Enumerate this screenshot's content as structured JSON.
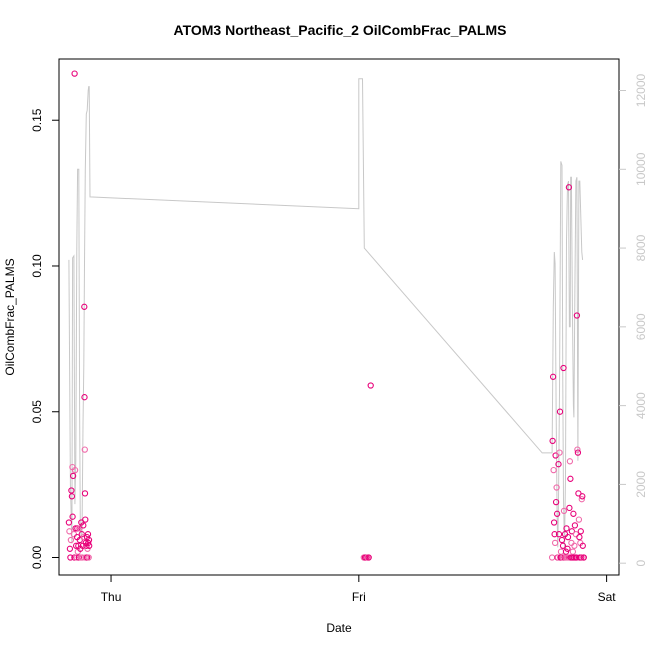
{
  "chart_data": {
    "type": "scatter",
    "title": "ATOM3 Northeast_Pacific_2 OilCombFrac_PALMS",
    "xlabel": "Date",
    "ylabel": "OilCombFrac_PALMS",
    "x_unit": "days since Thu 00:00",
    "xlim": [
      -0.21,
      2.05
    ],
    "ylim": [
      -0.006,
      0.171
    ],
    "y_ticks": [
      "0.00",
      "0.05",
      "0.10",
      "0.15"
    ],
    "y_tick_values": [
      0.0,
      0.05,
      0.1,
      0.15
    ],
    "x_ticks": [
      "Thu",
      "Fri",
      "Sat"
    ],
    "x_tick_values": [
      0,
      1,
      2
    ],
    "y2lim": [
      -300,
      12800
    ],
    "y2_ticks": [
      "0",
      "2000",
      "4000",
      "6000",
      "8000",
      "10000",
      "12000"
    ],
    "y2_tick_values": [
      0,
      2000,
      4000,
      6000,
      8000,
      10000,
      12000
    ],
    "colors": {
      "points_dark": "#e8007a",
      "points_light": "#f06aaa",
      "altitude_line": "#c8c8c8",
      "axis": "#000000"
    },
    "series": [
      {
        "kind": "scatter",
        "values": [
          [
            -0.17,
            0.012
          ],
          [
            -0.168,
            0.009
          ],
          [
            -0.166,
            0.003
          ],
          [
            -0.164,
            0.0
          ],
          [
            -0.162,
            0.006
          ],
          [
            -0.16,
            0.023
          ],
          [
            -0.158,
            0.021
          ],
          [
            -0.156,
            0.031
          ],
          [
            -0.155,
            0.014
          ],
          [
            -0.153,
            0.028
          ],
          [
            -0.15,
            0.008
          ],
          [
            -0.148,
            0.0
          ],
          [
            -0.147,
            0.166
          ],
          [
            -0.145,
            0.03
          ],
          [
            -0.143,
            0.01
          ],
          [
            -0.141,
            0.004
          ],
          [
            -0.139,
            0.0
          ],
          [
            -0.137,
            0.007
          ],
          [
            -0.136,
            0.01
          ],
          [
            -0.134,
            0.002
          ],
          [
            -0.132,
            0.004
          ],
          [
            -0.13,
            0.0
          ],
          [
            -0.128,
            0.01
          ],
          [
            -0.126,
            0.006
          ],
          [
            -0.124,
            0.003
          ],
          [
            -0.122,
            0.0
          ],
          [
            -0.12,
            0.012
          ],
          [
            -0.118,
            0.008
          ],
          [
            -0.116,
            0.0
          ],
          [
            -0.114,
            0.004
          ],
          [
            -0.112,
            0.011
          ],
          [
            -0.11,
            0.007
          ],
          [
            -0.108,
            0.086
          ],
          [
            -0.107,
            0.055
          ],
          [
            -0.106,
            0.037
          ],
          [
            -0.105,
            0.022
          ],
          [
            -0.104,
            0.013
          ],
          [
            -0.103,
            0.0
          ],
          [
            -0.102,
            0.005
          ],
          [
            -0.1,
            0.004
          ],
          [
            -0.099,
            0.0
          ],
          [
            -0.097,
            0.007
          ],
          [
            -0.096,
            0.0
          ],
          [
            -0.095,
            0.003
          ],
          [
            -0.093,
            0.008
          ],
          [
            -0.092,
            0.005
          ],
          [
            -0.09,
            0.0
          ],
          [
            -0.089,
            0.006
          ],
          [
            -0.088,
            0.004
          ],
          [
            1.02,
            0.0
          ],
          [
            1.025,
            0.0
          ],
          [
            1.03,
            0.0
          ],
          [
            1.035,
            0.0
          ],
          [
            1.04,
            0.0
          ],
          [
            1.048,
            0.059
          ],
          [
            1.78,
            0.0
          ],
          [
            1.782,
            0.04
          ],
          [
            1.784,
            0.062
          ],
          [
            1.786,
            0.03
          ],
          [
            1.788,
            0.012
          ],
          [
            1.79,
            0.008
          ],
          [
            1.792,
            0.005
          ],
          [
            1.794,
            0.035
          ],
          [
            1.796,
            0.019
          ],
          [
            1.798,
            0.024
          ],
          [
            1.8,
            0.015
          ],
          [
            1.802,
            0.0
          ],
          [
            1.804,
            0.0
          ],
          [
            1.806,
            0.032
          ],
          [
            1.808,
            0.008
          ],
          [
            1.81,
            0.036
          ],
          [
            1.812,
            0.05
          ],
          [
            1.814,
            0.0
          ],
          [
            1.816,
            0.002
          ],
          [
            1.818,
            0.0
          ],
          [
            1.82,
            0.006
          ],
          [
            1.822,
            0.0
          ],
          [
            1.824,
            0.004
          ],
          [
            1.826,
            0.065
          ],
          [
            1.828,
            0.016
          ],
          [
            1.83,
            0.0
          ],
          [
            1.832,
            0.008
          ],
          [
            1.834,
            0.0
          ],
          [
            1.836,
            0.002
          ],
          [
            1.838,
            0.01
          ],
          [
            1.84,
            0.0
          ],
          [
            1.842,
            0.003
          ],
          [
            1.844,
            0.007
          ],
          [
            1.846,
            0.0
          ],
          [
            1.848,
            0.127
          ],
          [
            1.85,
            0.017
          ],
          [
            1.852,
            0.033
          ],
          [
            1.854,
            0.027
          ],
          [
            1.856,
            0.0
          ],
          [
            1.858,
            0.005
          ],
          [
            1.86,
            0.009
          ],
          [
            1.862,
            0.0
          ],
          [
            1.864,
            0.002
          ],
          [
            1.866,
            0.015
          ],
          [
            1.868,
            0.0
          ],
          [
            1.87,
            0.004
          ],
          [
            1.872,
            0.011
          ],
          [
            1.874,
            0.0
          ],
          [
            1.876,
            0.008
          ],
          [
            1.878,
            0.0
          ],
          [
            1.88,
            0.083
          ],
          [
            1.882,
            0.037
          ],
          [
            1.884,
            0.036
          ],
          [
            1.886,
            0.022
          ],
          [
            1.888,
            0.013
          ],
          [
            1.89,
            0.007
          ],
          [
            1.892,
            0.0
          ],
          [
            1.894,
            0.005
          ],
          [
            1.896,
            0.009
          ],
          [
            1.898,
            0.0
          ],
          [
            1.9,
            0.02
          ],
          [
            1.902,
            0.021
          ],
          [
            1.904,
            0.004
          ],
          [
            1.906,
            0.0
          ],
          [
            1.908,
            0.0
          ]
        ]
      },
      {
        "kind": "line",
        "axis": "right",
        "values": [
          [
            -0.17,
            7700
          ],
          [
            -0.164,
            2000
          ],
          [
            -0.158,
            500
          ],
          [
            -0.155,
            7750
          ],
          [
            -0.15,
            7800
          ],
          [
            -0.146,
            1500
          ],
          [
            -0.142,
            2600
          ],
          [
            -0.138,
            8000
          ],
          [
            -0.135,
            10000
          ],
          [
            -0.13,
            10000
          ],
          [
            -0.127,
            4000
          ],
          [
            -0.124,
            1000
          ],
          [
            -0.12,
            600
          ],
          [
            -0.117,
            700
          ],
          [
            -0.113,
            3500
          ],
          [
            -0.11,
            5000
          ],
          [
            -0.107,
            7600
          ],
          [
            -0.104,
            10000
          ],
          [
            -0.1,
            11400
          ],
          [
            -0.096,
            11500
          ],
          [
            -0.092,
            12000
          ],
          [
            -0.09,
            12100
          ],
          [
            -0.088,
            12100
          ],
          [
            -0.085,
            9300
          ],
          [
            1.0,
            9000
          ],
          [
            1.0,
            12300
          ],
          [
            1.015,
            12300
          ],
          [
            1.022,
            8000
          ],
          [
            1.74,
            2800
          ],
          [
            1.78,
            2800
          ],
          [
            1.785,
            6500
          ],
          [
            1.789,
            7900
          ],
          [
            1.792,
            7600
          ],
          [
            1.796,
            4000
          ],
          [
            1.8,
            1200
          ],
          [
            1.803,
            400
          ],
          [
            1.806,
            1600
          ],
          [
            1.81,
            4300
          ],
          [
            1.815,
            10200
          ],
          [
            1.82,
            10100
          ],
          [
            1.823,
            4500
          ],
          [
            1.826,
            1600
          ],
          [
            1.83,
            400
          ],
          [
            1.834,
            2200
          ],
          [
            1.838,
            8200
          ],
          [
            1.842,
            9600
          ],
          [
            1.846,
            9700
          ],
          [
            1.85,
            6000
          ],
          [
            1.853,
            6000
          ],
          [
            1.855,
            9800
          ],
          [
            1.858,
            9800
          ],
          [
            1.862,
            6500
          ],
          [
            1.866,
            4000
          ],
          [
            1.868,
            3700
          ],
          [
            1.872,
            7000
          ],
          [
            1.876,
            9700
          ],
          [
            1.88,
            9800
          ],
          [
            1.884,
            2600
          ],
          [
            1.888,
            9700
          ],
          [
            1.892,
            9700
          ],
          [
            1.9,
            7900
          ],
          [
            1.903,
            7700
          ]
        ]
      }
    ]
  }
}
